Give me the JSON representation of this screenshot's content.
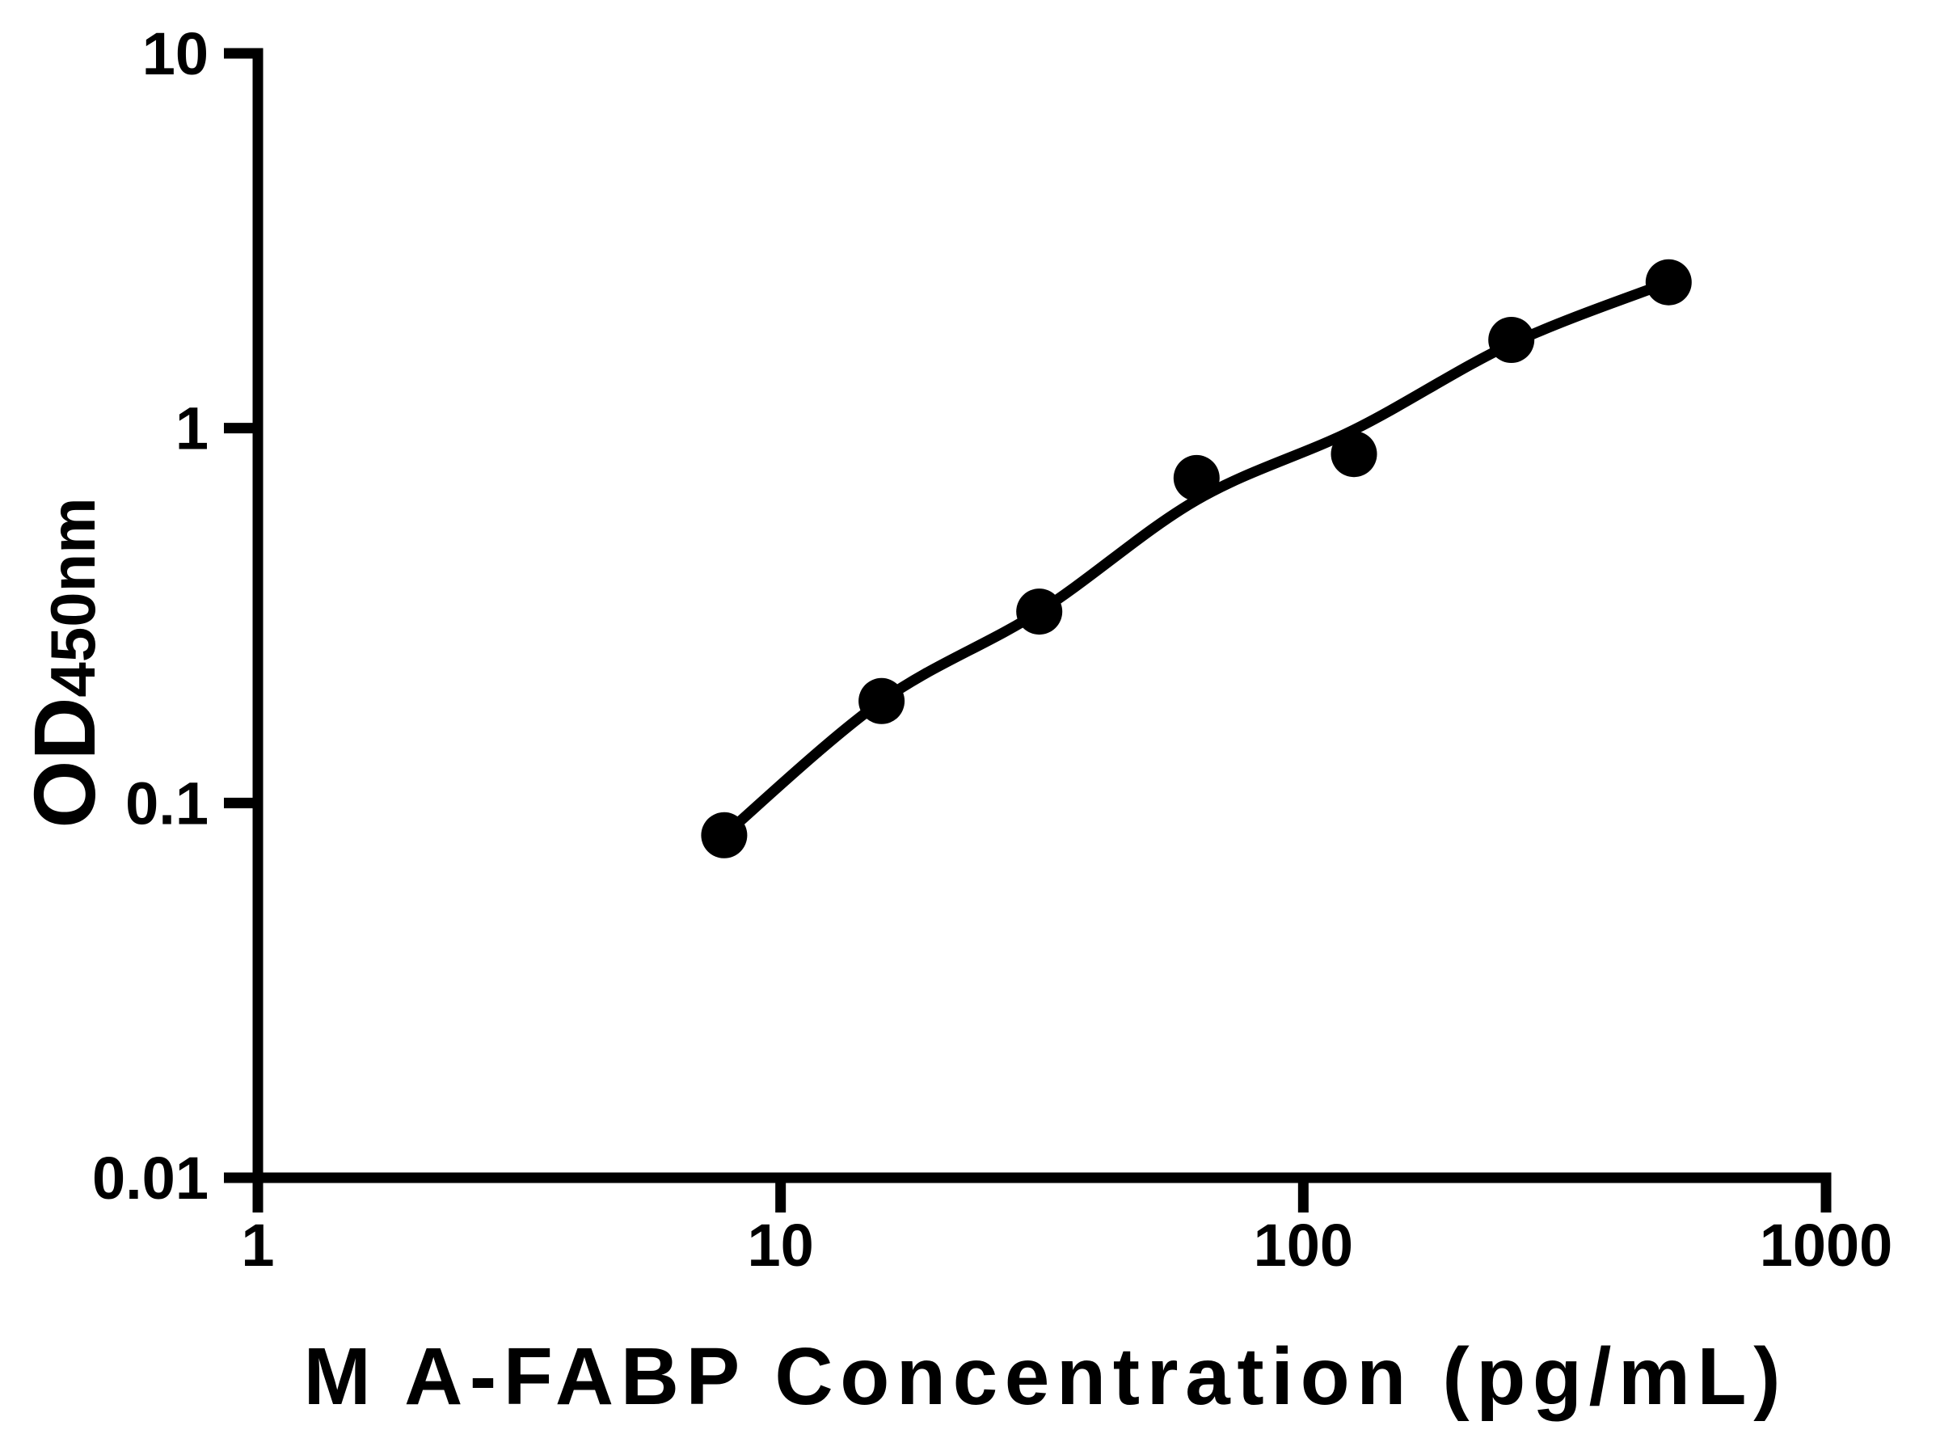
{
  "figure": {
    "background_color": "#ffffff",
    "ink_color": "#000000"
  },
  "chart_data": {
    "type": "scatter",
    "title": "",
    "xlabel": "M A-FABP Concentration (pg/mL)",
    "ylabel_main": "OD",
    "ylabel_subscript": "450nm",
    "x_scale": "log",
    "y_scale": "log",
    "xlim": [
      1,
      1000
    ],
    "ylim": [
      0.01,
      10
    ],
    "grid": false,
    "legend": null,
    "x_ticks": [
      {
        "value": 1,
        "label": "1"
      },
      {
        "value": 10,
        "label": "10"
      },
      {
        "value": 100,
        "label": "100"
      },
      {
        "value": 1000,
        "label": "1000"
      }
    ],
    "y_ticks": [
      {
        "value": 10,
        "label": "10"
      },
      {
        "value": 1,
        "label": "1"
      },
      {
        "value": 0.1,
        "label": "0.1"
      },
      {
        "value": 0.01,
        "label": "0.01"
      }
    ],
    "series": [
      {
        "name": "standard-points",
        "type": "scatter",
        "marker": {
          "shape": "circle",
          "fill": "#000000"
        },
        "x": [
          7.8,
          15.6,
          31.25,
          62.5,
          125,
          250,
          500
        ],
        "y": [
          0.082,
          0.187,
          0.324,
          0.736,
          0.853,
          1.72,
          2.45
        ]
      },
      {
        "name": "fit-curve",
        "type": "line",
        "color": "#000000",
        "x": [
          7.8,
          15.6,
          31.25,
          62.5,
          125,
          250,
          500
        ],
        "y": [
          0.082,
          0.187,
          0.324,
          0.643,
          0.99,
          1.68,
          2.45
        ]
      }
    ]
  }
}
